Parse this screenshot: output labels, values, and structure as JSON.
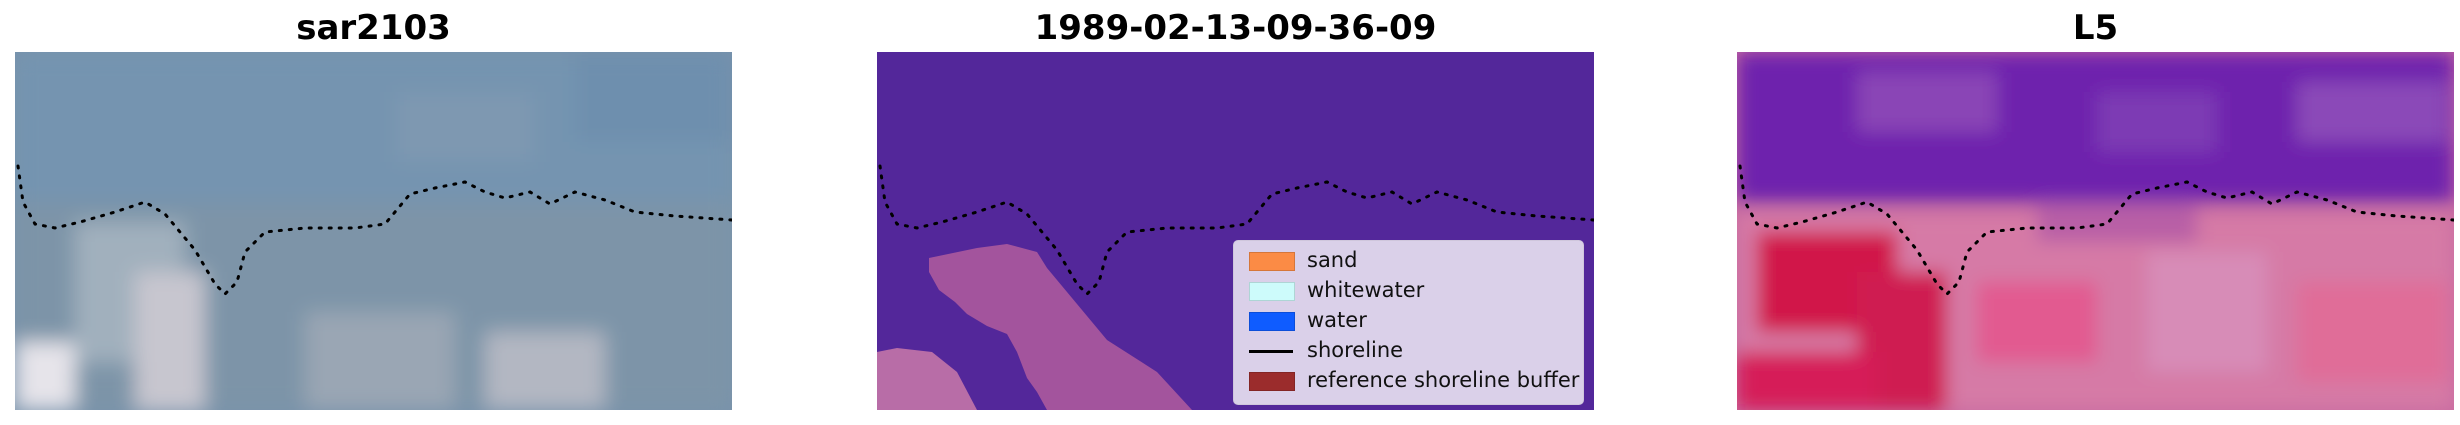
{
  "panels": [
    {
      "title": "sar2103"
    },
    {
      "title": "1989-02-13-09-36-09"
    },
    {
      "title": "L5"
    }
  ],
  "legend": {
    "items": [
      {
        "label": "sand",
        "color": "#fb8b45"
      },
      {
        "label": "whitewater",
        "color": "#cdfbfb"
      },
      {
        "label": "water",
        "color": "#0f5cff"
      },
      {
        "label": "shoreline",
        "color": "#000000"
      },
      {
        "label": "reference shoreline buffer",
        "color": "#9b2c2c"
      }
    ]
  },
  "colors": {
    "rgb_base": "#7a92ad",
    "class_background": "#53279a",
    "class_buffer": "#b25d9e",
    "index_low": "#6b1fae",
    "index_high": "#d4184e"
  }
}
